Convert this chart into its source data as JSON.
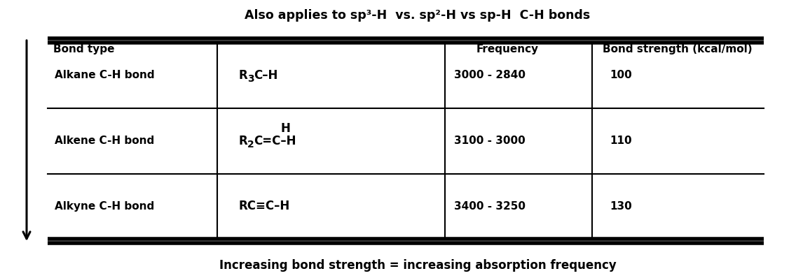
{
  "title": "Also applies to sp³-H  vs. sp²-H vs sp-H  C-H bonds",
  "footer": "Increasing bond strength = increasing absorption frequency",
  "header_col1": "Bond type",
  "header_col3": "Frequency",
  "header_col4": "Bond strength (kcal/mol)",
  "rows": [
    {
      "col1": "Alkane C-H bond",
      "col3": "3000 - 2840",
      "col4": "100"
    },
    {
      "col1": "Alkene C-H bond",
      "col3": "3100 - 3000",
      "col4": "110"
    },
    {
      "col1": "Alkyne C-H bond",
      "col3": "3400 - 3250",
      "col4": "130"
    }
  ],
  "bg_color": "#ffffff",
  "text_color": "#000000",
  "title_fontsize": 12.5,
  "header_fontsize": 11,
  "body_fontsize": 11,
  "formula_fontsize": 12,
  "footer_fontsize": 12
}
